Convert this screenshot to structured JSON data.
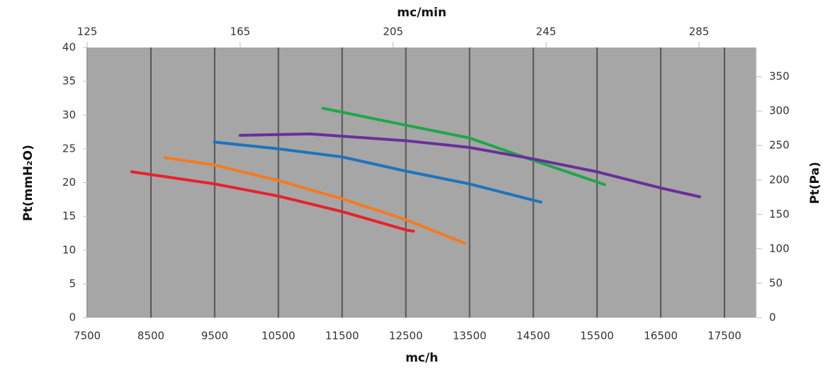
{
  "chart_data": {
    "type": "line",
    "xlabel": "mc/h",
    "x2label": "mc/min",
    "ylabel": "Pt(mmH₂O)",
    "y2label": "Pt(Pa)",
    "xlim": [
      7500,
      18000
    ],
    "xticks": [
      7500,
      8500,
      9500,
      10500,
      11500,
      12500,
      13500,
      14500,
      15500,
      16500,
      17500
    ],
    "x2lim": [
      125,
      300
    ],
    "x2ticks": [
      125,
      165,
      205,
      245,
      285
    ],
    "ylim": [
      0,
      40
    ],
    "yticks": [
      0,
      5,
      10,
      15,
      20,
      25,
      30,
      35,
      40
    ],
    "y2lim": [
      0,
      392.3
    ],
    "y2ticks": [
      0,
      50,
      100,
      150,
      200,
      250,
      300,
      350
    ],
    "grid": true,
    "series": [
      {
        "color": "#e8212b",
        "x": [
          8200,
          9500,
          10500,
          11500,
          12500,
          12620
        ],
        "values": [
          21.6,
          19.8,
          18,
          15.7,
          13,
          12.8
        ]
      },
      {
        "color": "#f47b20",
        "x": [
          8715,
          9500,
          10500,
          11500,
          12500,
          13430
        ],
        "values": [
          23.7,
          22.6,
          20.3,
          17.6,
          14.5,
          11
        ]
      },
      {
        "color": "#1e73be",
        "x": [
          9495,
          10500,
          11500,
          12500,
          13500,
          14620
        ],
        "values": [
          26,
          25,
          23.8,
          21.7,
          19.8,
          17.1
        ]
      },
      {
        "color": "#1fa64a",
        "x": [
          11200,
          12500,
          13500,
          14500,
          15620
        ],
        "values": [
          31,
          28.5,
          26.6,
          23.3,
          19.7
        ]
      },
      {
        "color": "#6a2f9a",
        "x": [
          9900,
          11000,
          12500,
          13500,
          14500,
          15500,
          16500,
          17110
        ],
        "values": [
          27,
          27.2,
          26.2,
          25.2,
          23.5,
          21.6,
          19.2,
          17.9
        ]
      }
    ]
  }
}
